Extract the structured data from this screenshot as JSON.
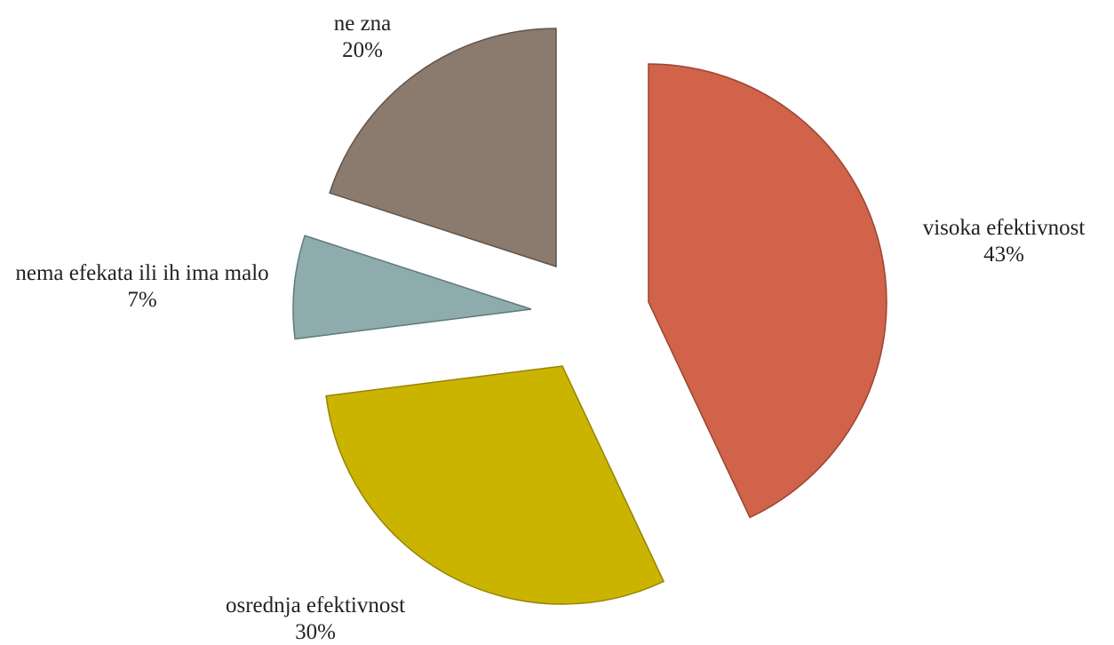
{
  "chart_data": {
    "type": "pie",
    "categories": [
      "visoka efektivnost",
      "osrednja efektivnost",
      "nema efekata ili ih ima malo",
      "ne zna"
    ],
    "values": [
      43,
      30,
      7,
      20
    ],
    "value_labels": [
      "43%",
      "30%",
      "7%",
      "20%"
    ],
    "colors": [
      "#d0634a",
      "#cbb400",
      "#8eacad",
      "#8b7a6e"
    ]
  }
}
